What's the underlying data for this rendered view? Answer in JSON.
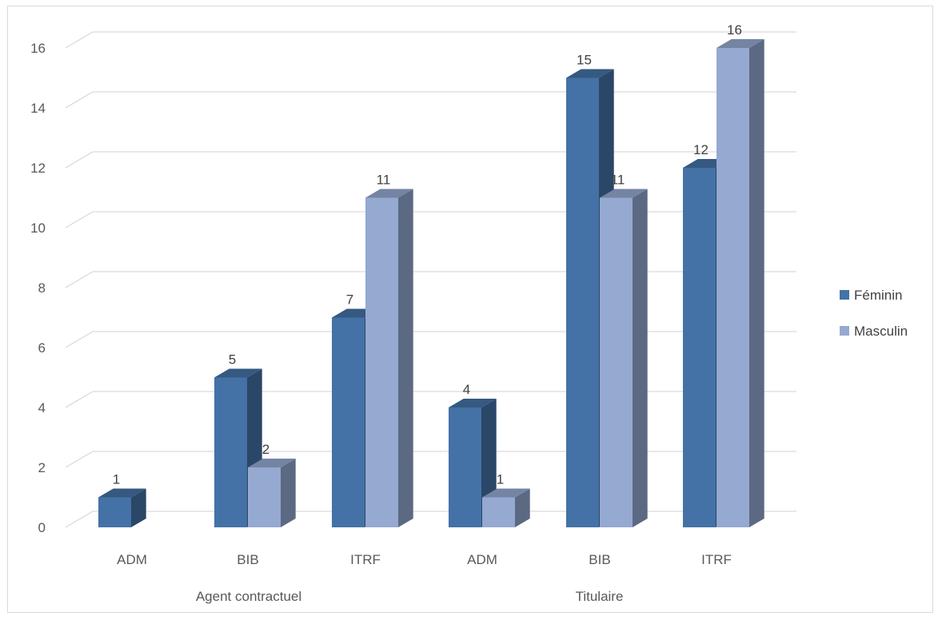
{
  "chart_data": {
    "type": "bar",
    "style": "3d-clustered-column",
    "groups": [
      {
        "label": "Agent contractuel",
        "categories": [
          "ADM",
          "BIB",
          "ITRF"
        ]
      },
      {
        "label": "Titulaire",
        "categories": [
          "ADM",
          "BIB",
          "ITRF"
        ]
      }
    ],
    "categories": [
      "ADM",
      "BIB",
      "ITRF",
      "ADM",
      "BIB",
      "ITRF"
    ],
    "series": [
      {
        "name": "Féminin",
        "values": [
          1,
          5,
          7,
          4,
          15,
          12
        ],
        "color": "#4472a6"
      },
      {
        "name": "Masculin",
        "values": [
          null,
          2,
          11,
          1,
          11,
          16
        ],
        "color": "#95a9d1"
      }
    ],
    "data_labels": {
      "Féminin": [
        "1",
        "5",
        "7",
        "4",
        "15",
        "12"
      ],
      "Masculin": [
        "",
        "2",
        "11",
        "1",
        "11",
        "16"
      ]
    },
    "y_ticks": [
      "0",
      "2",
      "4",
      "6",
      "8",
      "10",
      "12",
      "14",
      "16"
    ],
    "ylim": [
      0,
      16
    ],
    "grid": true,
    "legend_position": "right"
  }
}
